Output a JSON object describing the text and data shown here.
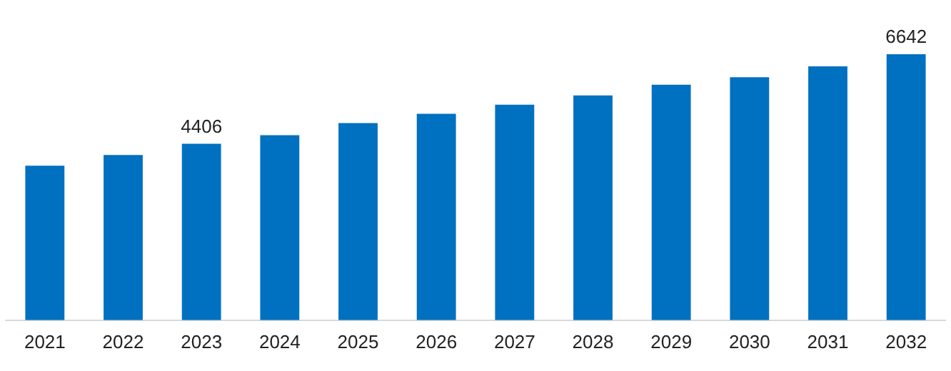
{
  "chart_data": {
    "type": "bar",
    "categories": [
      "2021",
      "2022",
      "2023",
      "2024",
      "2025",
      "2026",
      "2027",
      "2028",
      "2029",
      "2030",
      "2031",
      "2032"
    ],
    "values": [
      3860,
      4125,
      4406,
      4620,
      4925,
      5155,
      5385,
      5615,
      5880,
      6070,
      6340,
      6642
    ],
    "value_labels": [
      null,
      null,
      "4406",
      null,
      null,
      null,
      null,
      null,
      null,
      null,
      null,
      "6642"
    ],
    "color": "#0070c0",
    "grid": false,
    "legend": false
  }
}
